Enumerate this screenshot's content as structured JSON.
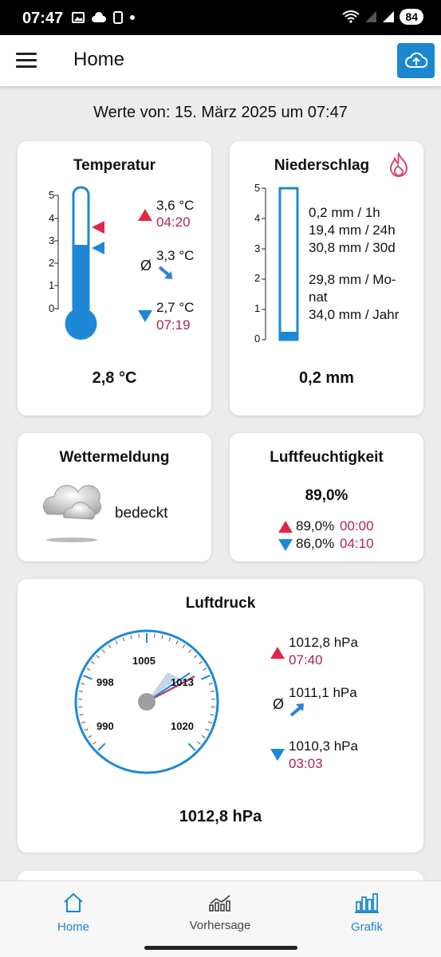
{
  "status_bar": {
    "time": "07:47",
    "battery": "84"
  },
  "app_bar": {
    "title": "Home"
  },
  "values_date": "Werte von: 15. März 2025 um 07:47",
  "temperature": {
    "title": "Temperatur",
    "scale": [
      "5",
      "4",
      "3",
      "2",
      "1",
      "0"
    ],
    "level": 2.8,
    "max_value": "3,6 °C",
    "max_time": "04:20",
    "avg_symbol": "Ø",
    "avg_value": "3,3 °C",
    "min_value": "2,7 °C",
    "min_time": "07:19",
    "current": "2,8 °C"
  },
  "precipitation": {
    "title": "Niederschlag",
    "scale": [
      "5",
      "4",
      "3",
      "2",
      "1",
      "0"
    ],
    "level": 0.2,
    "line1": "0,2 mm  / 1h",
    "line2": "19,4 mm / 24h",
    "line3": "30,8 mm / 30d",
    "line4": "29,8 mm  / Mo-",
    "line5": "nat",
    "line6": "34,0 mm / Jahr",
    "current": "0,2 mm"
  },
  "weather_report": {
    "title": "Wettermeldung",
    "condition": "bedeckt"
  },
  "humidity": {
    "title": "Luftfeuchtigkeit",
    "current": "89,0%",
    "max_value": "89,0%",
    "max_time": "00:00",
    "min_value": "86,0%",
    "min_time": "04:10"
  },
  "pressure": {
    "title": "Luftdruck",
    "gauge_labels": [
      "1005",
      "998",
      "1013",
      "990",
      "1020"
    ],
    "max_value": "1012,8 hPa",
    "max_time": "07:40",
    "avg_symbol": "Ø",
    "avg_value": "1011,1 hPa",
    "min_value": "1010,3 hPa",
    "min_time": "03:03",
    "current": "1012,8 hPa"
  },
  "nav": {
    "home": "Home",
    "forecast": "Vorhersage",
    "charts": "Grafik"
  },
  "colors": {
    "accent": "#1a88d0",
    "red": "#e0284a",
    "dark_red": "#b0244a",
    "blue": "#1e88d6"
  }
}
